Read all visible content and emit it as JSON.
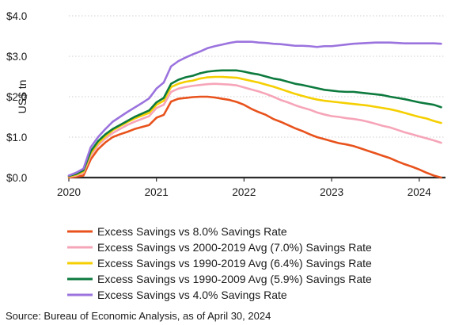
{
  "chart_data": {
    "type": "line",
    "ylabel": "US$ tn",
    "xlabel": "",
    "ylim": [
      0,
      4
    ],
    "xlim": [
      2020.0,
      2024.3
    ],
    "y_ticks": [
      {
        "value": 0,
        "label": "$0.0"
      },
      {
        "value": 1,
        "label": "$1.0"
      },
      {
        "value": 2,
        "label": "$2.0"
      },
      {
        "value": 3,
        "label": "$3.0"
      },
      {
        "value": 4,
        "label": "$4.0"
      }
    ],
    "x_ticks": [
      {
        "value": 2020,
        "label": "2020"
      },
      {
        "value": 2021,
        "label": "2021"
      },
      {
        "value": 2022,
        "label": "2022"
      },
      {
        "value": 2023,
        "label": "2023"
      },
      {
        "value": 2024,
        "label": "2024"
      }
    ],
    "grid": "horizontal dotted",
    "legend_position": "bottom",
    "x": [
      2020.0,
      2020.083,
      2020.167,
      2020.25,
      2020.333,
      2020.417,
      2020.5,
      2020.583,
      2020.667,
      2020.75,
      2020.833,
      2020.917,
      2021.0,
      2021.083,
      2021.167,
      2021.25,
      2021.333,
      2021.417,
      2021.5,
      2021.583,
      2021.667,
      2021.75,
      2021.833,
      2021.917,
      2022.0,
      2022.083,
      2022.167,
      2022.25,
      2022.333,
      2022.417,
      2022.5,
      2022.583,
      2022.667,
      2022.75,
      2022.833,
      2022.917,
      2023.0,
      2023.083,
      2023.167,
      2023.25,
      2023.333,
      2023.417,
      2023.5,
      2023.583,
      2023.667,
      2023.75,
      2023.833,
      2023.917,
      2024.0,
      2024.083,
      2024.167,
      2024.25
    ],
    "series": [
      {
        "name": "Excess Savings vs 8.0% Savings Rate",
        "color": "#e8521c",
        "values": [
          0.0,
          0.02,
          0.05,
          0.45,
          0.7,
          0.87,
          1.0,
          1.07,
          1.13,
          1.2,
          1.25,
          1.3,
          1.48,
          1.55,
          1.88,
          1.95,
          1.97,
          1.99,
          2.0,
          2.0,
          1.98,
          1.95,
          1.92,
          1.87,
          1.8,
          1.7,
          1.62,
          1.55,
          1.45,
          1.38,
          1.3,
          1.22,
          1.15,
          1.07,
          1.0,
          0.95,
          0.9,
          0.85,
          0.82,
          0.78,
          0.72,
          0.66,
          0.6,
          0.54,
          0.48,
          0.4,
          0.33,
          0.27,
          0.2,
          0.12,
          0.05,
          0.0
        ]
      },
      {
        "name": "Excess Savings vs 2000-2019 Avg (7.0%) Savings Rate",
        "color": "#f6a5b8",
        "values": [
          0.02,
          0.05,
          0.12,
          0.55,
          0.8,
          0.97,
          1.1,
          1.2,
          1.3,
          1.38,
          1.45,
          1.52,
          1.72,
          1.8,
          2.12,
          2.2,
          2.24,
          2.27,
          2.29,
          2.31,
          2.32,
          2.31,
          2.3,
          2.28,
          2.23,
          2.18,
          2.13,
          2.07,
          2.0,
          1.92,
          1.86,
          1.79,
          1.73,
          1.68,
          1.61,
          1.56,
          1.52,
          1.5,
          1.47,
          1.45,
          1.42,
          1.38,
          1.33,
          1.28,
          1.24,
          1.18,
          1.12,
          1.07,
          1.02,
          0.97,
          0.92,
          0.86
        ]
      },
      {
        "name": "Excess Savings vs 1990-2019 Avg (6.4%) Savings Rate",
        "color": "#f5cf00",
        "values": [
          0.03,
          0.07,
          0.15,
          0.6,
          0.85,
          1.02,
          1.17,
          1.27,
          1.37,
          1.46,
          1.53,
          1.6,
          1.8,
          1.9,
          2.24,
          2.32,
          2.37,
          2.4,
          2.45,
          2.48,
          2.49,
          2.49,
          2.48,
          2.47,
          2.43,
          2.39,
          2.35,
          2.3,
          2.25,
          2.19,
          2.13,
          2.07,
          2.02,
          1.97,
          1.93,
          1.9,
          1.88,
          1.86,
          1.84,
          1.82,
          1.8,
          1.78,
          1.75,
          1.72,
          1.69,
          1.65,
          1.6,
          1.55,
          1.5,
          1.46,
          1.4,
          1.35
        ]
      },
      {
        "name": "Excess Savings vs 1990-2009 Avg (5.9%) Savings Rate",
        "color": "#0d7a3e",
        "values": [
          0.04,
          0.09,
          0.18,
          0.65,
          0.9,
          1.07,
          1.2,
          1.3,
          1.4,
          1.5,
          1.58,
          1.66,
          1.86,
          1.97,
          2.32,
          2.42,
          2.48,
          2.52,
          2.58,
          2.62,
          2.64,
          2.65,
          2.65,
          2.65,
          2.62,
          2.58,
          2.55,
          2.5,
          2.45,
          2.42,
          2.37,
          2.32,
          2.29,
          2.25,
          2.21,
          2.17,
          2.15,
          2.13,
          2.12,
          2.12,
          2.1,
          2.08,
          2.06,
          2.04,
          2.0,
          1.97,
          1.94,
          1.9,
          1.86,
          1.83,
          1.8,
          1.74
        ]
      },
      {
        "name": "Excess Savings vs 4.0% Savings Rate",
        "color": "#9b73de",
        "values": [
          0.05,
          0.12,
          0.22,
          0.75,
          1.0,
          1.2,
          1.38,
          1.5,
          1.62,
          1.73,
          1.84,
          1.96,
          2.2,
          2.35,
          2.75,
          2.88,
          2.97,
          3.05,
          3.12,
          3.2,
          3.25,
          3.29,
          3.33,
          3.36,
          3.36,
          3.36,
          3.34,
          3.33,
          3.31,
          3.3,
          3.28,
          3.26,
          3.26,
          3.25,
          3.23,
          3.25,
          3.25,
          3.27,
          3.29,
          3.31,
          3.32,
          3.33,
          3.34,
          3.34,
          3.34,
          3.33,
          3.32,
          3.32,
          3.32,
          3.32,
          3.32,
          3.31
        ]
      }
    ]
  },
  "footer": {
    "source": "Source: Bureau of Economic Analysis, as of April 30, 2024"
  }
}
